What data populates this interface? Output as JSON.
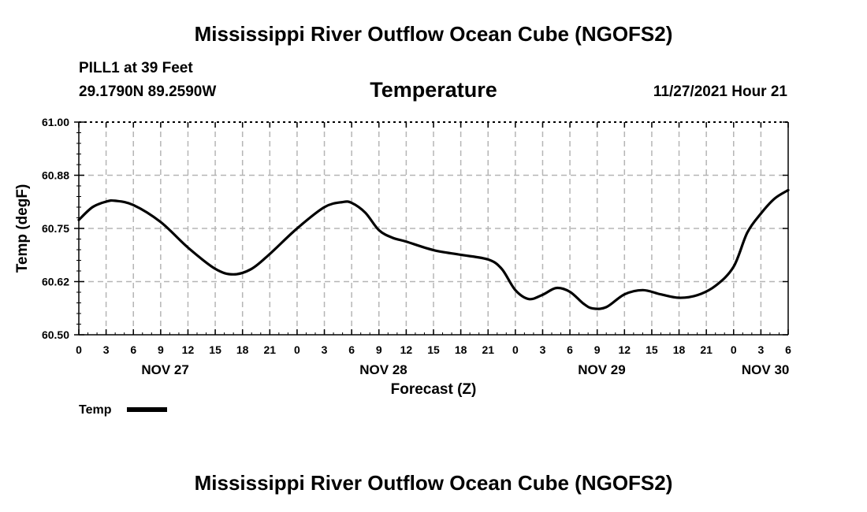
{
  "header": {
    "title": "Mississippi River Outflow Ocean Cube (NGOFS2)",
    "station": "PILL1 at 39 Feet",
    "coords": "29.1790N  89.2590W",
    "subtitle": "Temperature",
    "datetime": "11/27/2021 Hour 21"
  },
  "footer": {
    "title": "Mississippi River Outflow Ocean Cube (NGOFS2)"
  },
  "chart_data": {
    "type": "line",
    "title": "Temperature",
    "xlabel": "Forecast (Z)",
    "ylabel": "Temp (degF)",
    "xlim": [
      0,
      78
    ],
    "ylim": [
      60.5,
      61.0
    ],
    "grid": true,
    "y_ticks": [
      60.5,
      60.625,
      60.75,
      60.875,
      61.0
    ],
    "y_tick_labels": [
      "60.50",
      "60.62",
      "60.75",
      "60.88",
      "61.00"
    ],
    "x_ticks": [
      0,
      3,
      6,
      9,
      12,
      15,
      18,
      21,
      24,
      27,
      30,
      33,
      36,
      39,
      42,
      45,
      48,
      51,
      54,
      57,
      60,
      63,
      66,
      69,
      72,
      75,
      78
    ],
    "x_tick_labels": [
      "0",
      "3",
      "6",
      "9",
      "12",
      "15",
      "18",
      "21",
      "0",
      "3",
      "6",
      "9",
      "12",
      "15",
      "18",
      "21",
      "0",
      "3",
      "6",
      "9",
      "12",
      "15",
      "18",
      "21",
      "0",
      "3",
      "6"
    ],
    "day_labels": [
      {
        "label": "NOV 27",
        "x": 9.5
      },
      {
        "label": "NOV 28",
        "x": 33.5
      },
      {
        "label": "NOV 29",
        "x": 57.5
      },
      {
        "label": "NOV 30",
        "x": 75.5
      }
    ],
    "legend": [
      {
        "name": "Temp",
        "position": "bottom-left"
      }
    ],
    "series": [
      {
        "name": "Temp",
        "x": [
          0,
          1.5,
          3,
          4,
          6,
          9,
          12,
          15,
          17,
          19,
          21,
          24,
          27,
          29,
          30,
          31.5,
          33,
          34.5,
          36,
          39,
          42,
          45,
          46.5,
          48,
          49.5,
          51,
          52.5,
          54,
          55.5,
          56.5,
          58,
          60,
          62,
          64,
          66,
          68,
          70,
          72,
          73.5,
          75,
          76.5,
          78
        ],
        "y": [
          60.77,
          60.8,
          60.813,
          60.815,
          60.805,
          60.765,
          60.705,
          60.655,
          60.642,
          60.655,
          60.69,
          60.75,
          60.8,
          60.812,
          60.81,
          60.787,
          60.746,
          60.728,
          60.719,
          60.699,
          60.688,
          60.677,
          60.655,
          60.605,
          60.584,
          60.594,
          60.61,
          60.601,
          60.573,
          60.562,
          60.565,
          60.595,
          60.605,
          60.595,
          60.587,
          60.593,
          60.615,
          60.66,
          60.74,
          60.785,
          60.82,
          60.84
        ]
      }
    ]
  }
}
